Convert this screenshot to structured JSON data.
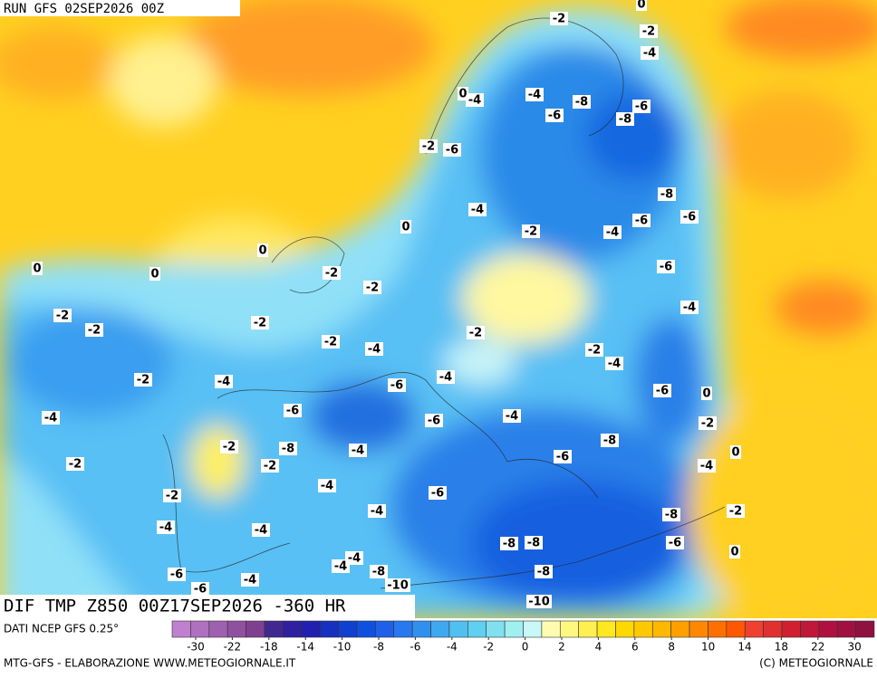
{
  "header": {
    "run": "RUN GFS 02SEP2026 00Z",
    "field": "DIF TMP Z850 00Z17SEP2026 -360 HR"
  },
  "footer": {
    "source": "DATI NCEP GFS 0.25°",
    "credit": "MTG-GFS - ELABORAZIONE WWW.METEOGIORNALE.IT",
    "copyright": "(C) METEOGIORNALE"
  },
  "colorbar": {
    "ticks": [
      -30,
      -22,
      -18,
      -14,
      -10,
      -8,
      -6,
      -4,
      -2,
      0,
      2,
      4,
      6,
      8,
      10,
      14,
      18,
      22,
      30
    ]
  },
  "contour_labels": [
    -2,
    0,
    -2,
    -4,
    -4,
    -4,
    0,
    -8,
    -6,
    -6,
    -8,
    -2,
    -6,
    -8,
    -4,
    -6,
    -6,
    0,
    -2,
    -4,
    0,
    0,
    0,
    -2,
    -6,
    -2,
    -2,
    -4,
    -2,
    -2,
    -2,
    -2,
    -4,
    -2,
    -4,
    -2,
    -4,
    -4,
    -6,
    0,
    -6,
    -6,
    -4,
    -4,
    -6,
    -2,
    -8,
    -2,
    -8,
    -4,
    0,
    -6,
    -2,
    -2,
    -4,
    -4,
    -6,
    -2,
    -4,
    -2,
    -8,
    -4,
    -4,
    -8,
    -8,
    -6,
    0,
    -4,
    -4,
    -8,
    -8,
    -6,
    -4,
    -10,
    -6,
    -10
  ]
}
